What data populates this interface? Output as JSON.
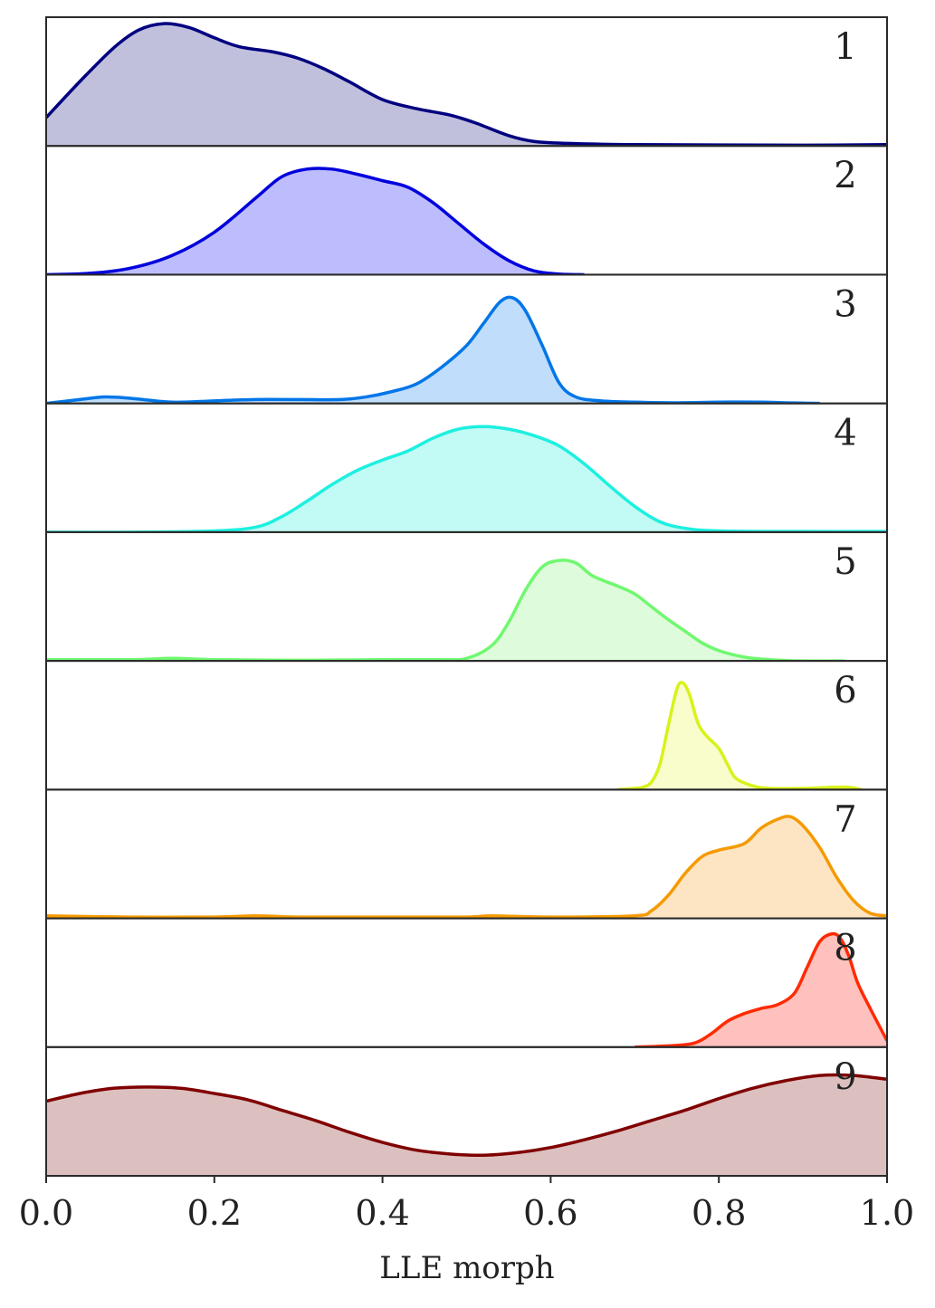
{
  "chart_data": {
    "type": "area",
    "xlabel": "LLE morph",
    "xlim": [
      0.0,
      1.0
    ],
    "xticks": [
      "0.0",
      "0.2",
      "0.4",
      "0.6",
      "0.8",
      "1.0"
    ],
    "xtick_values": [
      0.0,
      0.2,
      0.4,
      0.6,
      0.8,
      1.0
    ],
    "grid": false,
    "series": [
      {
        "label": "1",
        "color": "#000080",
        "fill": "#c0c0dd",
        "x": [
          0.0,
          0.04,
          0.08,
          0.11,
          0.14,
          0.17,
          0.2,
          0.23,
          0.27,
          0.3,
          0.33,
          0.36,
          0.4,
          0.44,
          0.48,
          0.51,
          0.55,
          0.58,
          0.62,
          0.7,
          0.8,
          0.9,
          1.0
        ],
        "y": [
          0.22,
          0.5,
          0.76,
          0.9,
          0.95,
          0.92,
          0.84,
          0.77,
          0.73,
          0.68,
          0.6,
          0.5,
          0.36,
          0.29,
          0.24,
          0.18,
          0.08,
          0.035,
          0.02,
          0.01,
          0.008,
          0.006,
          0.01
        ]
      },
      {
        "label": "2",
        "color": "#0000dd",
        "fill": "#bdbdfd",
        "x": [
          0.0,
          0.05,
          0.1,
          0.15,
          0.2,
          0.25,
          0.28,
          0.31,
          0.34,
          0.37,
          0.4,
          0.43,
          0.46,
          0.49,
          0.52,
          0.55,
          0.58,
          0.61,
          0.64
        ],
        "y": [
          0.0,
          0.01,
          0.05,
          0.15,
          0.33,
          0.6,
          0.76,
          0.82,
          0.82,
          0.78,
          0.73,
          0.68,
          0.56,
          0.4,
          0.24,
          0.11,
          0.03,
          0.005,
          0.0
        ]
      },
      {
        "label": "3",
        "color": "#0076e8",
        "fill": "#c0ddfb",
        "x": [
          0.0,
          0.04,
          0.07,
          0.1,
          0.15,
          0.2,
          0.25,
          0.3,
          0.35,
          0.38,
          0.41,
          0.44,
          0.47,
          0.5,
          0.52,
          0.54,
          0.555,
          0.57,
          0.59,
          0.61,
          0.63,
          0.66,
          0.7,
          0.75,
          0.8,
          0.85,
          0.88,
          0.92
        ],
        "y": [
          0.0,
          0.03,
          0.05,
          0.04,
          0.01,
          0.02,
          0.03,
          0.03,
          0.03,
          0.05,
          0.09,
          0.15,
          0.28,
          0.45,
          0.62,
          0.79,
          0.82,
          0.72,
          0.45,
          0.16,
          0.05,
          0.02,
          0.01,
          0.005,
          0.01,
          0.01,
          0.005,
          0.0
        ]
      },
      {
        "label": "4",
        "color": "#1df0e0",
        "fill": "#c2fbf5",
        "x": [
          0.0,
          0.1,
          0.2,
          0.25,
          0.28,
          0.31,
          0.34,
          0.37,
          0.4,
          0.43,
          0.46,
          0.49,
          0.52,
          0.55,
          0.58,
          0.61,
          0.64,
          0.67,
          0.7,
          0.73,
          0.76,
          0.8,
          0.9,
          1.0
        ],
        "y": [
          0.0,
          0.0,
          0.01,
          0.04,
          0.12,
          0.24,
          0.37,
          0.48,
          0.56,
          0.63,
          0.73,
          0.8,
          0.82,
          0.8,
          0.75,
          0.67,
          0.53,
          0.36,
          0.2,
          0.08,
          0.03,
          0.01,
          0.005,
          0.005
        ]
      },
      {
        "label": "5",
        "color": "#70f870",
        "fill": "#defbdb",
        "x": [
          0.0,
          0.1,
          0.15,
          0.2,
          0.3,
          0.4,
          0.47,
          0.5,
          0.53,
          0.55,
          0.57,
          0.59,
          0.61,
          0.63,
          0.65,
          0.68,
          0.7,
          0.72,
          0.74,
          0.76,
          0.78,
          0.8,
          0.83,
          0.86,
          0.9,
          0.95
        ],
        "y": [
          0.01,
          0.01,
          0.02,
          0.01,
          0.005,
          0.01,
          0.01,
          0.02,
          0.12,
          0.3,
          0.55,
          0.73,
          0.78,
          0.76,
          0.66,
          0.58,
          0.52,
          0.42,
          0.32,
          0.23,
          0.14,
          0.08,
          0.03,
          0.01,
          0.0,
          0.0
        ]
      },
      {
        "label": "6",
        "color": "#d8f21a",
        "fill": "#f8fdcb",
        "x": [
          0.68,
          0.7,
          0.71,
          0.72,
          0.73,
          0.74,
          0.75,
          0.757,
          0.765,
          0.775,
          0.785,
          0.8,
          0.81,
          0.82,
          0.84,
          0.86,
          0.9,
          0.95,
          0.97
        ],
        "y": [
          0.0,
          0.01,
          0.02,
          0.06,
          0.2,
          0.5,
          0.78,
          0.83,
          0.74,
          0.52,
          0.42,
          0.32,
          0.2,
          0.09,
          0.03,
          0.01,
          0.01,
          0.02,
          0.0
        ]
      },
      {
        "label": "7",
        "color": "#f59a00",
        "fill": "#fde5c3",
        "x": [
          0.0,
          0.1,
          0.2,
          0.25,
          0.3,
          0.4,
          0.5,
          0.53,
          0.6,
          0.7,
          0.72,
          0.74,
          0.76,
          0.78,
          0.8,
          0.83,
          0.85,
          0.87,
          0.885,
          0.9,
          0.92,
          0.94,
          0.96,
          0.98,
          1.0
        ],
        "y": [
          0.02,
          0.01,
          0.01,
          0.02,
          0.01,
          0.01,
          0.01,
          0.02,
          0.01,
          0.02,
          0.06,
          0.18,
          0.35,
          0.48,
          0.53,
          0.58,
          0.7,
          0.77,
          0.79,
          0.72,
          0.55,
          0.32,
          0.14,
          0.04,
          0.02
        ]
      },
      {
        "label": "8",
        "color": "#ff2a00",
        "fill": "#fec1bd",
        "x": [
          0.7,
          0.74,
          0.77,
          0.79,
          0.81,
          0.83,
          0.85,
          0.87,
          0.89,
          0.905,
          0.92,
          0.935,
          0.945,
          0.955,
          0.965,
          0.98,
          1.0
        ],
        "y": [
          0.0,
          0.01,
          0.03,
          0.1,
          0.2,
          0.26,
          0.3,
          0.33,
          0.42,
          0.62,
          0.82,
          0.88,
          0.84,
          0.7,
          0.5,
          0.3,
          0.05
        ]
      },
      {
        "label": "9",
        "color": "#800000",
        "fill": "#dcc0c0",
        "x": [
          0.0,
          0.04,
          0.08,
          0.12,
          0.16,
          0.2,
          0.24,
          0.28,
          0.32,
          0.36,
          0.4,
          0.44,
          0.48,
          0.52,
          0.56,
          0.6,
          0.64,
          0.68,
          0.72,
          0.76,
          0.8,
          0.84,
          0.88,
          0.92,
          0.96,
          1.0
        ],
        "y": [
          0.58,
          0.64,
          0.68,
          0.69,
          0.68,
          0.64,
          0.59,
          0.51,
          0.43,
          0.34,
          0.26,
          0.2,
          0.17,
          0.16,
          0.18,
          0.22,
          0.28,
          0.35,
          0.43,
          0.51,
          0.6,
          0.68,
          0.74,
          0.78,
          0.78,
          0.75
        ]
      }
    ]
  }
}
